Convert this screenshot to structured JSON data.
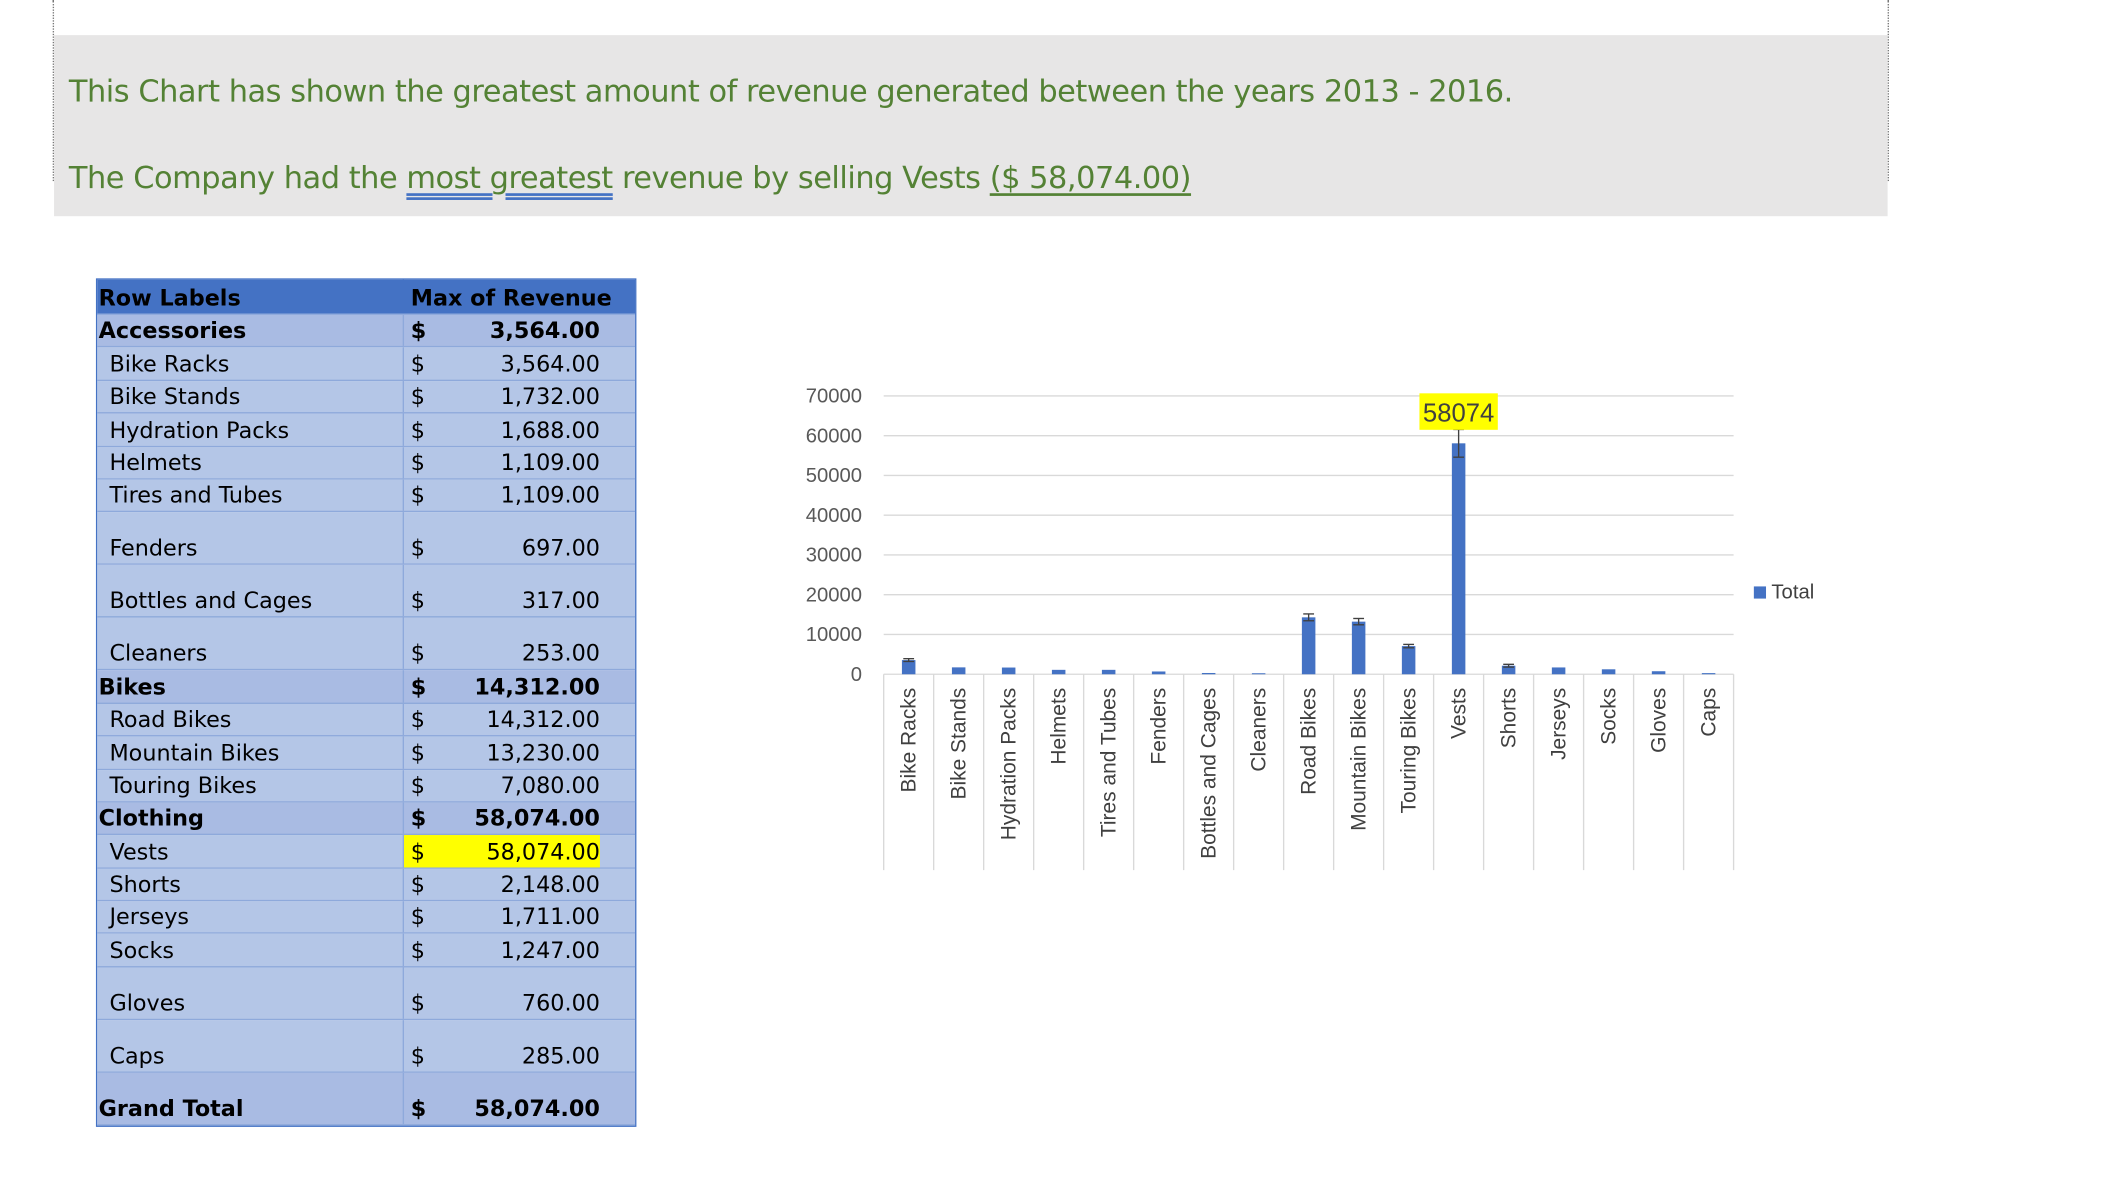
{
  "note": {
    "line1": "This Chart has shown  the greatest amount of revenue generated between the years 2013 - 2016.",
    "line2_prefix": "The Company had the ",
    "line2_underlined": "most greatest",
    "line2_middle": " revenue by selling Vests ",
    "line2_amount": "($ 58,074.00)"
  },
  "pivot": {
    "header": {
      "label": "Row Labels",
      "value": "Max of Revenue"
    },
    "rows": [
      {
        "kind": "group",
        "label": "Accessories",
        "dollar": "$",
        "value": "3,564.00"
      },
      {
        "kind": "item",
        "label": "Bike Racks",
        "dollar": "$",
        "value": "3,564.00"
      },
      {
        "kind": "item",
        "label": "Bike Stands",
        "dollar": "$",
        "value": "1,732.00"
      },
      {
        "kind": "item",
        "label": "Hydration Packs",
        "dollar": "$",
        "value": "1,688.00"
      },
      {
        "kind": "item",
        "label": "Helmets",
        "dollar": "$",
        "value": "1,109.00"
      },
      {
        "kind": "item",
        "label": "Tires and Tubes",
        "dollar": "$",
        "value": "1,109.00"
      },
      {
        "kind": "item tall",
        "label": "Fenders",
        "dollar": "$",
        "value": "697.00"
      },
      {
        "kind": "item tall",
        "label": "Bottles and Cages",
        "dollar": "$",
        "value": "317.00"
      },
      {
        "kind": "item tall",
        "label": "Cleaners",
        "dollar": "$",
        "value": "253.00"
      },
      {
        "kind": "group",
        "label": "Bikes",
        "dollar": "$",
        "value": "14,312.00"
      },
      {
        "kind": "item",
        "label": "Road Bikes",
        "dollar": "$",
        "value": "14,312.00"
      },
      {
        "kind": "item",
        "label": "Mountain Bikes",
        "dollar": "$",
        "value": "13,230.00"
      },
      {
        "kind": "item",
        "label": "Touring Bikes",
        "dollar": "$",
        "value": "7,080.00"
      },
      {
        "kind": "group",
        "label": "Clothing",
        "dollar": "$",
        "value": "58,074.00"
      },
      {
        "kind": "item highlight",
        "label": "Vests",
        "dollar": "$",
        "value": "58,074.00"
      },
      {
        "kind": "item",
        "label": "Shorts",
        "dollar": "$",
        "value": "2,148.00"
      },
      {
        "kind": "item",
        "label": "Jerseys",
        "dollar": "$",
        "value": "1,711.00"
      },
      {
        "kind": "item",
        "label": "Socks",
        "dollar": "$",
        "value": "1,247.00"
      },
      {
        "kind": "item tall",
        "label": "Gloves",
        "dollar": "$",
        "value": "760.00"
      },
      {
        "kind": "item tall",
        "label": "Caps",
        "dollar": "$",
        "value": "285.00"
      },
      {
        "kind": "total tall",
        "label": "Grand Total",
        "dollar": "$",
        "value": "58,074.00"
      }
    ]
  },
  "chart_data": {
    "type": "bar",
    "categories": [
      "Bike Racks",
      "Bike Stands",
      "Hydration Packs",
      "Helmets",
      "Tires and Tubes",
      "Fenders",
      "Bottles and Cages",
      "Cleaners",
      "Road Bikes",
      "Mountain Bikes",
      "Touring Bikes",
      "Vests",
      "Shorts",
      "Jerseys",
      "Socks",
      "Gloves",
      "Caps"
    ],
    "series": [
      {
        "name": "Total",
        "values": [
          3564,
          1732,
          1688,
          1109,
          1109,
          697,
          317,
          253,
          14312,
          13230,
          7080,
          58074,
          2148,
          1711,
          1247,
          760,
          285
        ]
      }
    ],
    "ylim": [
      0,
      70000
    ],
    "yticks": [
      0,
      10000,
      20000,
      30000,
      40000,
      50000,
      60000,
      70000
    ],
    "grid": true,
    "error_bars": true,
    "legend": "right",
    "data_label": {
      "category": "Vests",
      "text": "58074",
      "highlight_color": "#ffff00"
    },
    "bar_color": "#4472c4",
    "title": "",
    "xlabel": "",
    "ylabel": ""
  }
}
